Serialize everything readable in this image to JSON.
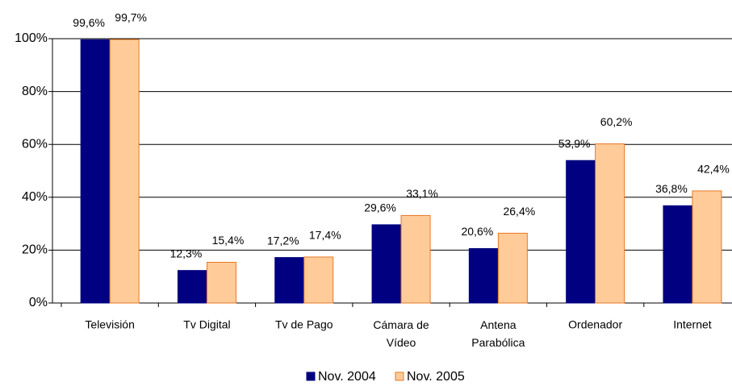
{
  "chart_data": {
    "type": "bar",
    "categories": [
      "Televisión",
      "Tv Digital",
      "Tv de Pago",
      "Cámara de\nVídeo",
      "Antena\nParabólica",
      "Ordenador",
      "Internet"
    ],
    "series": [
      {
        "name": "Nov. 2004",
        "color": "#000080",
        "values": [
          99.6,
          12.3,
          17.2,
          29.6,
          20.6,
          53.9,
          36.8
        ],
        "value_labels": [
          "99,6%",
          "12,3%",
          "17,2%",
          "29,6%",
          "20,6%",
          "53,9%",
          "36,8%"
        ]
      },
      {
        "name": "Nov. 2005",
        "color": "#FFCC99",
        "stroke": "#E87722",
        "values": [
          99.7,
          15.4,
          17.4,
          33.1,
          26.4,
          60.2,
          42.4
        ],
        "value_labels": [
          "99,7%",
          "15,4%",
          "17,4%",
          "33,1%",
          "26,4%",
          "60,2%",
          "42,4%"
        ]
      }
    ],
    "ylim": [
      0,
      100
    ],
    "yticks": [
      {
        "value": 0,
        "label": "0%"
      },
      {
        "value": 20,
        "label": "20%"
      },
      {
        "value": 40,
        "label": "40%"
      },
      {
        "value": 60,
        "label": "60%"
      },
      {
        "value": 80,
        "label": "80%"
      },
      {
        "value": 100,
        "label": "100%"
      }
    ],
    "grid": true,
    "legend": "bottom"
  }
}
